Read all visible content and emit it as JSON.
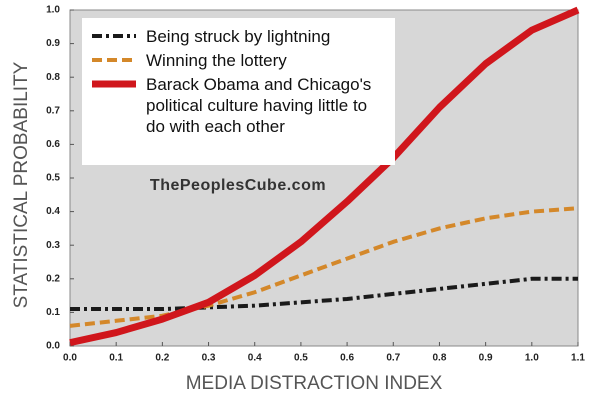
{
  "chart_data": {
    "type": "line",
    "ylabel": "STATISTICAL PROBABILITY",
    "xlabel": "MEDIA DISTRACTION INDEX",
    "annotation": "ThePeoplesCube.com",
    "x": [
      0,
      0.1,
      0.2,
      0.3,
      0.4,
      0.5,
      0.6,
      0.7,
      0.8,
      0.9,
      1,
      1.1
    ],
    "series": [
      {
        "name": "Being struck by lightning",
        "color": "#1a1a1a",
        "dash": "dashdot",
        "values": [
          0.11,
          0.11,
          0.11,
          0.115,
          0.12,
          0.13,
          0.14,
          0.155,
          0.17,
          0.185,
          0.2,
          0.2
        ]
      },
      {
        "name": "Winning the lottery",
        "color": "#d4882a",
        "dash": "dashed",
        "values": [
          0.06,
          0.075,
          0.09,
          0.12,
          0.16,
          0.21,
          0.26,
          0.31,
          0.35,
          0.38,
          0.4,
          0.41
        ]
      },
      {
        "name": "Barack Obama and Chicago's political culture having little to do with each other",
        "color": "#d0161c",
        "dash": "solid",
        "values": [
          0.01,
          0.04,
          0.08,
          0.13,
          0.21,
          0.31,
          0.43,
          0.56,
          0.71,
          0.84,
          0.94,
          1.0
        ]
      }
    ],
    "xlim": [
      0,
      1.1
    ],
    "xticks": [
      {
        "value": 0,
        "label": "0.0"
      },
      0.1,
      0.2,
      0.3,
      0.4,
      0.5,
      0.6,
      0.7,
      0.8,
      0.9,
      {
        "value": 1,
        "label": "1.0"
      },
      1.1
    ],
    "ylim": [
      0,
      1
    ],
    "yticks": [
      {
        "value": 0,
        "label": "0.0"
      },
      0.1,
      0.2,
      0.3,
      0.4,
      0.5,
      0.6,
      0.7,
      0.8,
      0.9,
      {
        "value": 1,
        "label": "1.0"
      }
    ],
    "legend": "upper left"
  }
}
